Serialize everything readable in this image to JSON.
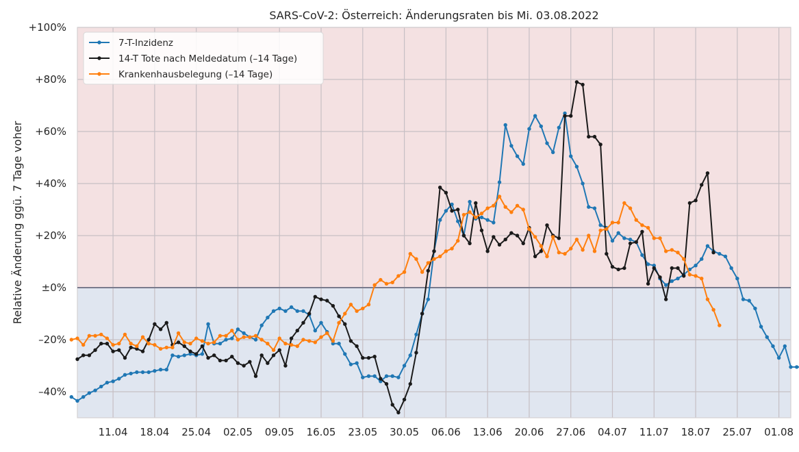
{
  "chart_data": {
    "type": "line",
    "title": "SARS-CoV-2: Österreich: Änderungsraten bis Mi. 03.08.2022",
    "xlabel": "",
    "ylabel": "Relative Änderung ggü. 7 Tage voher",
    "x_start": "2022-04-05",
    "x_end": "2022-08-03",
    "ylim": [
      -50,
      100
    ],
    "yticks": [
      -40,
      -20,
      0,
      20,
      40,
      60,
      80,
      100
    ],
    "ytick_labels": [
      "–40%",
      "–20%",
      "±0%",
      "+20%",
      "+40%",
      "+60%",
      "+80%",
      "+100%"
    ],
    "xtick_labels": [
      "11.04",
      "18.04",
      "25.04",
      "02.05",
      "09.05",
      "16.05",
      "23.05",
      "30.05",
      "06.06",
      "13.06",
      "20.06",
      "27.06",
      "04.07",
      "11.07",
      "18.07",
      "25.07",
      "01.08"
    ],
    "grid": true,
    "legend_position": "top-left",
    "background_regions": {
      "positive": "#f4e1e2",
      "negative": "#e0e6f0"
    },
    "zero_line_color": "#7a7a8c",
    "series": [
      {
        "name": "7-T-Inzidenz",
        "color": "#1f77b4",
        "start_date": "2022-04-04",
        "values": [
          -42,
          -43.5,
          -42,
          -40.5,
          -39.5,
          -38,
          -36.5,
          -36,
          -35,
          -33.5,
          -33,
          -32.5,
          -32.5,
          -32.5,
          -32,
          -31.5,
          -31.5,
          -26,
          -26.5,
          -26,
          -25.5,
          -26,
          -25.5,
          -14,
          -21.5,
          -21.5,
          -20,
          -19.5,
          -16,
          -17.5,
          -19,
          -20,
          -14.5,
          -11.5,
          -9,
          -8,
          -9,
          -7.5,
          -9,
          -9,
          -10.5,
          -16.5,
          -13.5,
          -17,
          -21.5,
          -21.5,
          -25.5,
          -29.5,
          -29,
          -34.5,
          -34,
          -34,
          -36,
          -34,
          -34,
          -34.5,
          -30,
          -26,
          -18,
          -10,
          -4.5,
          14,
          26,
          29.5,
          32,
          25.5,
          20,
          33,
          26.5,
          27,
          26,
          25,
          40.5,
          62.5,
          54.5,
          50.5,
          47.5,
          61,
          66,
          62,
          55.5,
          52,
          61.5,
          67,
          50.5,
          46.5,
          40,
          31,
          30.5,
          24,
          23,
          18,
          21,
          19,
          18.5,
          17.5,
          12.5,
          9,
          8.5,
          3.5,
          1,
          2.5,
          3.5,
          5,
          7,
          8.5,
          11,
          16,
          14,
          13,
          12,
          7.5,
          3.5,
          -4.5,
          -5,
          -8,
          -15,
          -19,
          -22.5,
          -27,
          -22.5,
          -30.5,
          -30.5,
          -30.5
        ]
      },
      {
        "name": "14-T Tote nach Meldedatum (–14 Tage)",
        "color": "#1a1a1a",
        "start_date": "2022-04-05",
        "values": [
          -27.5,
          -26,
          -26,
          -24,
          -21.5,
          -21.5,
          -24.5,
          -24,
          -27,
          -23,
          -23.5,
          -24.5,
          -20,
          -14,
          -16,
          -13.5,
          -22,
          -21,
          -22.5,
          -24.5,
          -25.5,
          -22.5,
          -27,
          -26,
          -28,
          -28,
          -26.5,
          -29,
          -30,
          -28.5,
          -34,
          -26,
          -29,
          -26,
          -24,
          -30,
          -19.5,
          -16.5,
          -13.5,
          -10,
          -3.5,
          -4.5,
          -5,
          -7,
          -11,
          -14,
          -20.5,
          -22.5,
          -27,
          -27,
          -26.5,
          -35,
          -37,
          -45,
          -48,
          -43,
          -37,
          -25,
          -10,
          6.5,
          14,
          38.5,
          36.5,
          29.5,
          30,
          20,
          17,
          32.5,
          22,
          14,
          19.5,
          16.5,
          18.5,
          21,
          20,
          17,
          23,
          12,
          14,
          24,
          20,
          19,
          66,
          66,
          79,
          78,
          58,
          58,
          55,
          13,
          8,
          7,
          7.5,
          17,
          17.5,
          21.5,
          1.5,
          7.5,
          4,
          -4.5,
          7.5,
          7.5,
          4.5,
          32.5,
          33.5,
          39.5,
          44,
          13.5
        ]
      },
      {
        "name": "Krankenhausbelegung (–14 Tage)",
        "color": "#ff7f0e",
        "start_date": "2022-04-04",
        "values": [
          -20,
          -19.5,
          -22,
          -18.5,
          -18.5,
          -18,
          -19.5,
          -22,
          -21.5,
          -18,
          -21.5,
          -22.5,
          -19,
          -21.5,
          -22,
          -23.5,
          -23,
          -23,
          -17.5,
          -21,
          -21.5,
          -19.5,
          -20.5,
          -21.5,
          -21,
          -18.5,
          -18.5,
          -16.5,
          -20,
          -19,
          -19,
          -18.5,
          -20,
          -21.5,
          -24,
          -19.5,
          -21.5,
          -22,
          -22.5,
          -20,
          -20.5,
          -21,
          -19,
          -17.5,
          -20.5,
          -13.5,
          -10,
          -6.5,
          -9,
          -8,
          -6.5,
          1,
          3,
          1.5,
          2,
          4.5,
          6,
          13,
          11,
          6,
          9.5,
          11,
          12,
          14,
          15,
          18,
          28,
          29,
          27,
          28.5,
          30.5,
          31.5,
          35,
          31,
          29,
          31.5,
          30,
          22.5,
          19.5,
          16,
          12,
          19.5,
          13.5,
          13,
          15,
          18.5,
          14.5,
          20,
          14,
          22,
          22.5,
          25,
          25,
          32.5,
          30.5,
          26,
          24,
          23,
          19,
          19,
          14,
          14.5,
          13.5,
          11,
          5,
          4.5,
          3.5,
          -4.5,
          -8.5,
          -14.5
        ]
      }
    ]
  }
}
